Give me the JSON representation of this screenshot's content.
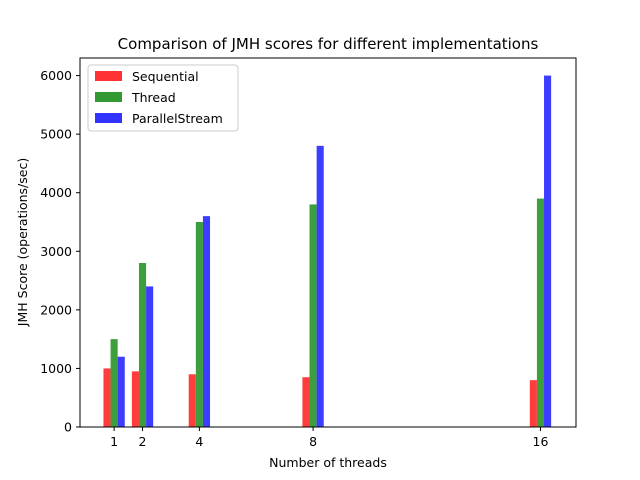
{
  "chart_data": {
    "type": "bar",
    "title": "Comparison of JMH scores for different implementations",
    "xlabel": "Number of threads",
    "ylabel": "JMH Score (operations/sec)",
    "x": [
      1,
      2,
      4,
      8,
      16
    ],
    "xticks": [
      "1",
      "2",
      "4",
      "8",
      "16"
    ],
    "xlim": [
      -0.2,
      17.25
    ],
    "ylim": [
      0,
      6300
    ],
    "yticks": [
      0,
      1000,
      2000,
      3000,
      4000,
      5000,
      6000
    ],
    "bar_width_units": 0.25,
    "grid": false,
    "legend_position": "top-left",
    "series": [
      {
        "name": "Sequential",
        "color": "#ff3333",
        "values": [
          1000,
          950,
          900,
          850,
          800
        ]
      },
      {
        "name": "Thread",
        "color": "#339933",
        "values": [
          1500,
          2800,
          3500,
          3800,
          3900
        ]
      },
      {
        "name": "ParallelStream",
        "color": "#3333ff",
        "values": [
          1200,
          2400,
          3600,
          4800,
          6000
        ]
      }
    ]
  }
}
